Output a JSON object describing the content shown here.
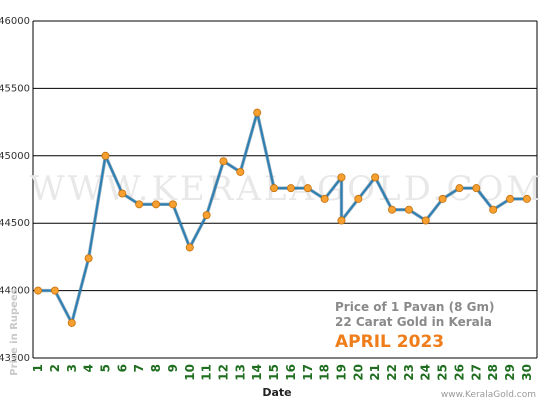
{
  "chart_data": {
    "type": "line",
    "xlabel": "Date",
    "ylabel": "Price in Rupees",
    "ylim": [
      43500,
      46000
    ],
    "yticks": [
      43500,
      44000,
      44500,
      45000,
      45500,
      46000
    ],
    "grid": "horizontal",
    "x": [
      1,
      2,
      3,
      4,
      5,
      6,
      7,
      8,
      9,
      10,
      11,
      12,
      13,
      14,
      15,
      16,
      17,
      18,
      19,
      19,
      20,
      21,
      22,
      23,
      24,
      25,
      26,
      27,
      28,
      29,
      30
    ],
    "values": [
      44000,
      44000,
      43760,
      44240,
      45000,
      44720,
      44640,
      44640,
      44640,
      44320,
      44560,
      44960,
      44880,
      45320,
      44760,
      44760,
      44760,
      44680,
      44840,
      44520,
      44680,
      44840,
      44600,
      44600,
      44520,
      44680,
      44760,
      44760,
      44600,
      44680,
      44680
    ],
    "xticks": [
      "1",
      "2",
      "3",
      "4",
      "5",
      "6",
      "7",
      "8",
      "9",
      "10",
      "11",
      "12",
      "13",
      "14",
      "15",
      "16",
      "17",
      "18",
      "19",
      "20",
      "21",
      "22",
      "23",
      "24",
      "25",
      "26",
      "27",
      "28",
      "29",
      "30"
    ],
    "colors": {
      "line": "#2c7fb3",
      "marker": "#f5a030",
      "grid": "#000000",
      "month": "#ef7d1a"
    }
  },
  "watermark": "WWW.KERALAGOLD.COM",
  "info": {
    "line1": "Price of 1 Pavan (8 Gm)",
    "line2": "22 Carat Gold in Kerala",
    "month": "APRIL 2023"
  },
  "credit": "www.KeralaGold.com"
}
